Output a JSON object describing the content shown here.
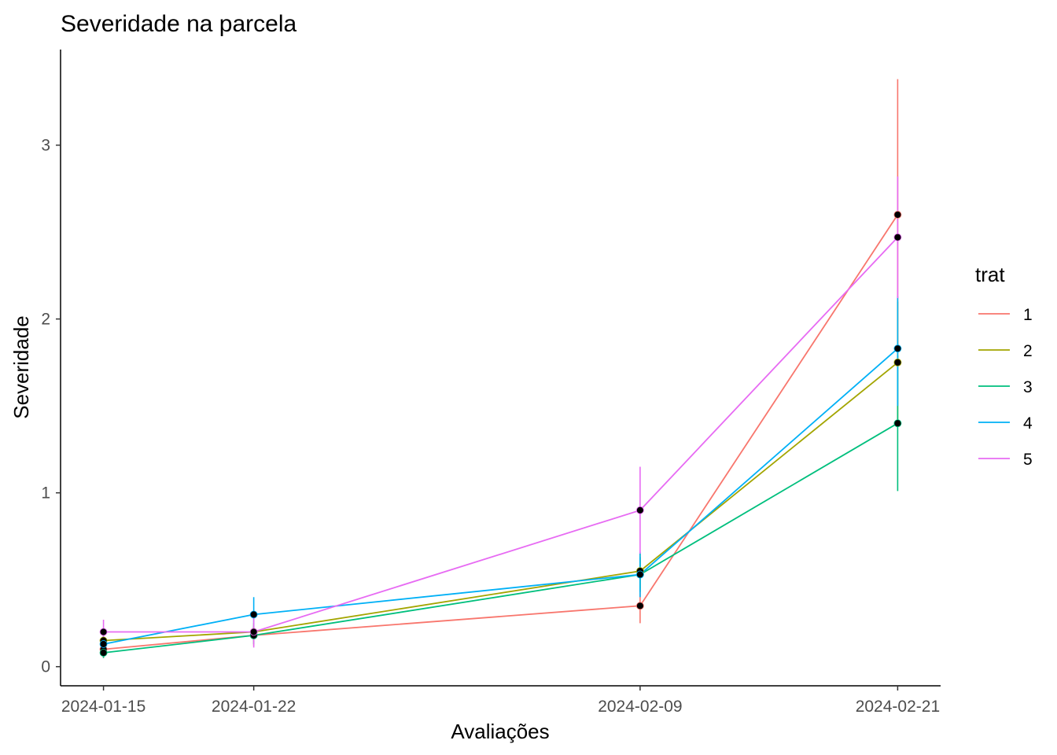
{
  "chart_data": {
    "type": "line",
    "title": "Severidade na parcela",
    "xlabel": "Avaliações",
    "ylabel": "Severidade",
    "x": [
      "2024-01-15",
      "2024-01-22",
      "2024-02-09",
      "2024-02-21"
    ],
    "xlim": [
      "2024-01-13",
      "2024-02-23"
    ],
    "ylim": [
      -0.11,
      3.55
    ],
    "yticks": [
      "0",
      "1",
      "2",
      "3"
    ],
    "grid": false,
    "legend": {
      "title": "trat",
      "position": "right"
    },
    "series": [
      {
        "name": "1",
        "color": "#F8766D",
        "values": [
          0.1,
          0.18,
          0.35,
          2.6
        ],
        "err_low": [
          0.05,
          0.12,
          0.25,
          1.8
        ],
        "err_high": [
          0.15,
          0.24,
          0.45,
          3.38
        ]
      },
      {
        "name": "2",
        "color": "#A3A500",
        "values": [
          0.15,
          0.2,
          0.55,
          1.75
        ],
        "err_low": [
          0.1,
          0.15,
          0.45,
          1.4
        ],
        "err_high": [
          0.2,
          0.25,
          0.65,
          2.1
        ]
      },
      {
        "name": "3",
        "color": "#00BF7D",
        "values": [
          0.08,
          0.18,
          0.53,
          1.4
        ],
        "err_low": [
          0.05,
          0.13,
          0.43,
          1.01
        ],
        "err_high": [
          0.11,
          0.23,
          0.63,
          1.79
        ]
      },
      {
        "name": "4",
        "color": "#00B0F6",
        "values": [
          0.13,
          0.3,
          0.53,
          1.83
        ],
        "err_low": [
          0.08,
          0.2,
          0.4,
          1.5
        ],
        "err_high": [
          0.18,
          0.4,
          0.66,
          2.13
        ]
      },
      {
        "name": "5",
        "color": "#E76BF3",
        "values": [
          0.2,
          0.2,
          0.9,
          2.47
        ],
        "err_low": [
          0.13,
          0.11,
          0.65,
          2.12
        ],
        "err_high": [
          0.27,
          0.29,
          1.15,
          2.82
        ]
      }
    ]
  }
}
